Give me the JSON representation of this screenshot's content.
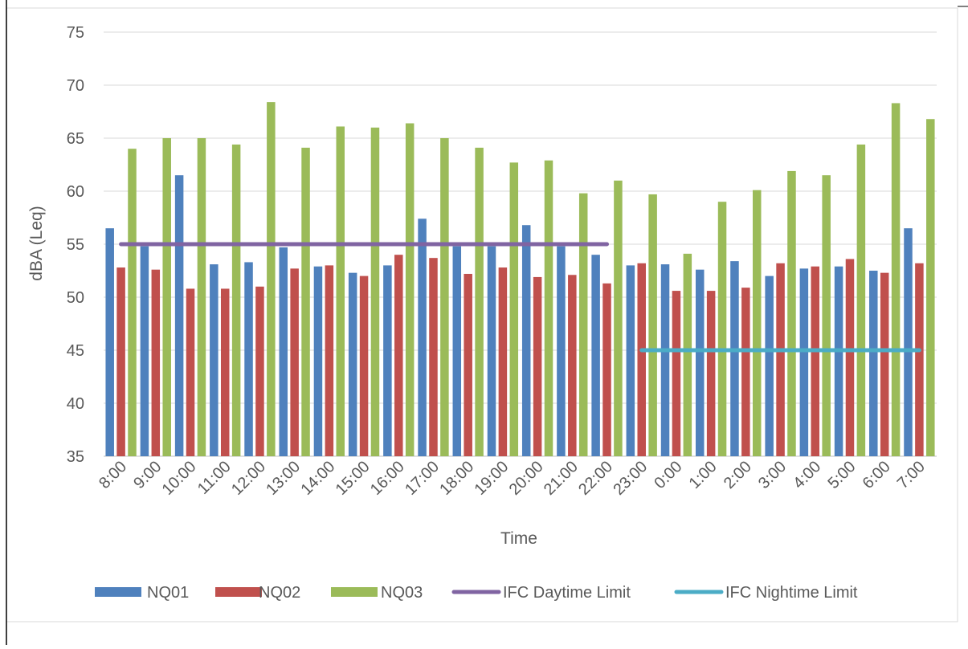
{
  "chart_data": {
    "type": "bar",
    "xlabel": "Time",
    "ylabel": "dBA (Leq)",
    "ylim": [
      35,
      75
    ],
    "yticks": [
      35,
      40,
      45,
      50,
      55,
      60,
      65,
      70,
      75
    ],
    "grid": true,
    "legend_position": "bottom",
    "categories": [
      "8:00",
      "9:00",
      "10:00",
      "11:00",
      "12:00",
      "13:00",
      "14:00",
      "15:00",
      "16:00",
      "17:00",
      "18:00",
      "19:00",
      "20:00",
      "21:00",
      "22:00",
      "23:00",
      "0:00",
      "1:00",
      "2:00",
      "3:00",
      "4:00",
      "5:00",
      "6:00",
      "7:00"
    ],
    "series": [
      {
        "name": "NQ01",
        "type": "bar",
        "color": "#4F81BD",
        "values": [
          56.5,
          54.8,
          61.5,
          53.1,
          53.3,
          54.7,
          52.9,
          52.3,
          53.0,
          57.4,
          54.8,
          54.8,
          56.8,
          54.8,
          54.0,
          53.0,
          53.1,
          52.6,
          53.4,
          52.0,
          52.7,
          52.9,
          52.5,
          56.5
        ]
      },
      {
        "name": "NQ02",
        "type": "bar",
        "color": "#C0504D",
        "values": [
          52.8,
          52.6,
          50.8,
          50.8,
          51.0,
          52.7,
          53.0,
          52.0,
          54.0,
          53.7,
          52.2,
          52.8,
          51.9,
          52.1,
          51.3,
          53.2,
          50.6,
          50.6,
          50.9,
          53.2,
          52.9,
          53.6,
          52.3,
          53.2
        ]
      },
      {
        "name": "NQ03",
        "type": "bar",
        "color": "#9BBB59",
        "values": [
          64.0,
          65.0,
          65.0,
          64.4,
          68.4,
          64.1,
          66.1,
          66.0,
          66.4,
          65.0,
          64.1,
          62.7,
          62.9,
          59.8,
          61.0,
          59.7,
          54.1,
          59.0,
          60.1,
          61.9,
          61.5,
          64.4,
          68.3,
          66.8
        ]
      },
      {
        "name": "IFC Daytime Limit",
        "type": "line",
        "color": "#8064A2",
        "value": 55,
        "from": "8:00",
        "to": "22:00"
      },
      {
        "name": "IFC Nightime Limit",
        "type": "line",
        "color": "#4BACC6",
        "value": 45,
        "from": "23:00",
        "to": "7:00"
      }
    ]
  }
}
